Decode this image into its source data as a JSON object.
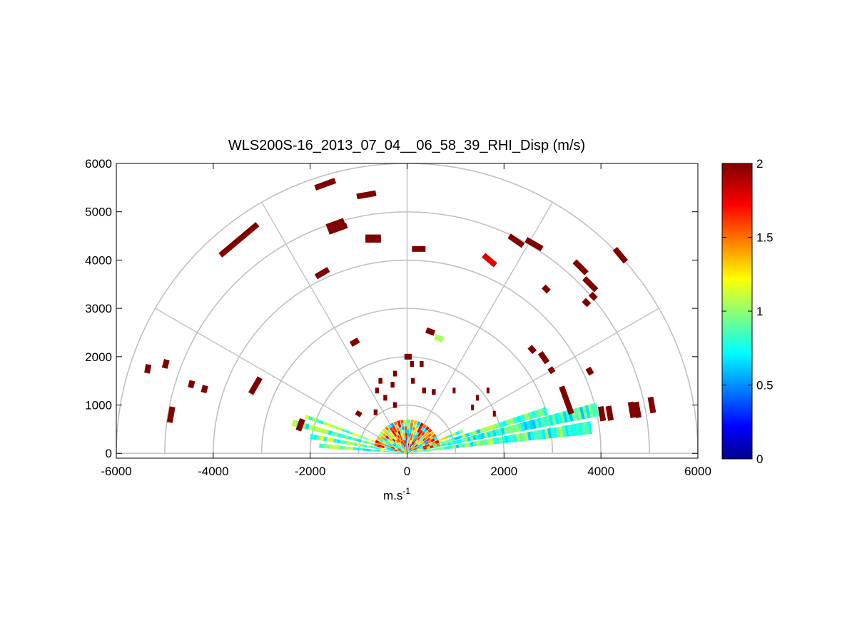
{
  "chart_data": {
    "type": "heatmap",
    "subtype": "polar-rhi-scan",
    "title": "WLS200S-16_2013_07_04__06_58_39_RHI_Disp (m/s)",
    "xlabel": {
      "base": "m.s",
      "sup": "-1"
    },
    "ylabel": "",
    "xlim": [
      -6000,
      6000
    ],
    "ylim": [
      -100,
      6000
    ],
    "xticks": [
      -6000,
      -4000,
      -2000,
      0,
      2000,
      4000,
      6000
    ],
    "yticks": [
      0,
      1000,
      2000,
      3000,
      4000,
      5000,
      6000
    ],
    "xtick_labels": [
      "-6000",
      "-4000",
      "-2000",
      "0",
      "2000",
      "4000",
      "6000"
    ],
    "ytick_labels": [
      "0",
      "1000",
      "2000",
      "3000",
      "4000",
      "5000",
      "6000"
    ],
    "polar_grid": {
      "range_rings": [
        1000,
        2000,
        3000,
        4000,
        5000,
        6000
      ],
      "spoke_angles_deg": [
        0,
        30,
        60,
        90,
        120,
        150,
        180
      ]
    },
    "colorbar": {
      "colormap": "jet",
      "min": 0,
      "max": 2,
      "ticks": [
        0,
        0.5,
        1,
        1.5,
        2
      ],
      "tick_labels": [
        "0",
        "0.5",
        "1",
        "1.5",
        "2"
      ]
    },
    "grid": false,
    "colors": {
      "grid": "#c0c0c0",
      "axes": "#000000",
      "background": "#ffffff"
    },
    "segments": [
      {
        "x": -5350,
        "y": 1750,
        "angle": 80,
        "len": 180,
        "value": 2
      },
      {
        "x": -4980,
        "y": 1850,
        "angle": 75,
        "len": 180,
        "value": 2
      },
      {
        "x": -4870,
        "y": 800,
        "angle": 80,
        "len": 330,
        "value": 2
      },
      {
        "x": -4450,
        "y": 1430,
        "angle": 75,
        "len": 150,
        "value": 2
      },
      {
        "x": -4180,
        "y": 1330,
        "angle": 75,
        "len": 150,
        "value": 2
      },
      {
        "x": -3130,
        "y": 1400,
        "angle": 60,
        "len": 380,
        "value": 2
      },
      {
        "x": -3470,
        "y": 4420,
        "angle": 40,
        "len": 1000,
        "value": 2
      },
      {
        "x": -1690,
        "y": 5570,
        "angle": 20,
        "len": 440,
        "value": 2
      },
      {
        "x": -840,
        "y": 5350,
        "angle": 10,
        "len": 400,
        "value": 2
      },
      {
        "x": -1480,
        "y": 4750,
        "angle": 20,
        "len": 380,
        "value": 2
      },
      {
        "x": -1430,
        "y": 4650,
        "angle": 20,
        "len": 400,
        "value": 2
      },
      {
        "x": -700,
        "y": 4420,
        "angle": 0,
        "len": 320,
        "value": 2
      },
      {
        "x": -700,
        "y": 4470,
        "angle": 0,
        "len": 320,
        "value": 2
      },
      {
        "x": -1750,
        "y": 3730,
        "angle": 30,
        "len": 300,
        "value": 2
      },
      {
        "x": 240,
        "y": 4230,
        "angle": 0,
        "len": 280,
        "value": 2
      },
      {
        "x": 1700,
        "y": 4000,
        "angle": -40,
        "len": 320,
        "value": 1.8
      },
      {
        "x": 2250,
        "y": 4400,
        "angle": -35,
        "len": 350,
        "value": 2
      },
      {
        "x": 2620,
        "y": 4330,
        "angle": -30,
        "len": 380,
        "value": 2
      },
      {
        "x": 3580,
        "y": 3850,
        "angle": -45,
        "len": 350,
        "value": 2
      },
      {
        "x": 3780,
        "y": 3500,
        "angle": -45,
        "len": 350,
        "value": 2
      },
      {
        "x": 3840,
        "y": 3250,
        "angle": -45,
        "len": 150,
        "value": 2
      },
      {
        "x": 3700,
        "y": 3120,
        "angle": -45,
        "len": 150,
        "value": 2
      },
      {
        "x": 4400,
        "y": 4100,
        "angle": -50,
        "len": 350,
        "value": 2
      },
      {
        "x": 2870,
        "y": 3400,
        "angle": -45,
        "len": 150,
        "value": 2
      },
      {
        "x": -1080,
        "y": 2300,
        "angle": 30,
        "len": 180,
        "value": 2
      },
      {
        "x": 480,
        "y": 2520,
        "angle": -20,
        "len": 180,
        "value": 2
      },
      {
        "x": 660,
        "y": 2380,
        "angle": -20,
        "len": 180,
        "value": 1.05
      },
      {
        "x": 2580,
        "y": 2150,
        "angle": -50,
        "len": 150,
        "value": 2
      },
      {
        "x": 2820,
        "y": 1980,
        "angle": -55,
        "len": 250,
        "value": 2
      },
      {
        "x": 2980,
        "y": 1720,
        "angle": -55,
        "len": 120,
        "value": 2
      },
      {
        "x": 3770,
        "y": 1700,
        "angle": -60,
        "len": 150,
        "value": 2
      },
      {
        "x": 3290,
        "y": 1100,
        "angle": -70,
        "len": 600,
        "value": 2
      },
      {
        "x": 4020,
        "y": 820,
        "angle": -80,
        "len": 300,
        "value": 2
      },
      {
        "x": 4180,
        "y": 830,
        "angle": -80,
        "len": 300,
        "value": 2
      },
      {
        "x": 4640,
        "y": 900,
        "angle": -80,
        "len": 330,
        "value": 2
      },
      {
        "x": 4750,
        "y": 900,
        "angle": -80,
        "len": 330,
        "value": 2
      },
      {
        "x": 5050,
        "y": 1000,
        "angle": -80,
        "len": 330,
        "value": 2
      },
      {
        "x": -2200,
        "y": 590,
        "angle": 70,
        "len": 250,
        "value": 2
      },
      {
        "x": 20,
        "y": 2000,
        "angle": 0,
        "len": 150,
        "value": 2
      },
      {
        "x": -250,
        "y": 1650,
        "angle": 0,
        "len": 80,
        "value": 2
      },
      {
        "x": 100,
        "y": 1850,
        "angle": 0,
        "len": 80,
        "value": 2
      },
      {
        "x": 300,
        "y": 1850,
        "angle": 0,
        "len": 80,
        "value": 2
      },
      {
        "x": -550,
        "y": 1500,
        "angle": 0,
        "len": 80,
        "value": 2
      },
      {
        "x": -300,
        "y": 1420,
        "angle": 0,
        "len": 80,
        "value": 2
      },
      {
        "x": 120,
        "y": 1500,
        "angle": 0,
        "len": 80,
        "value": 2
      },
      {
        "x": -620,
        "y": 1300,
        "angle": 0,
        "len": 80,
        "value": 2
      },
      {
        "x": -450,
        "y": 1150,
        "angle": 0,
        "len": 80,
        "value": 2
      },
      {
        "x": -250,
        "y": 1000,
        "angle": 0,
        "len": 80,
        "value": 2
      },
      {
        "x": 350,
        "y": 1300,
        "angle": 0,
        "len": 80,
        "value": 2
      },
      {
        "x": 550,
        "y": 1270,
        "angle": 0,
        "len": 80,
        "value": 2
      },
      {
        "x": -650,
        "y": 850,
        "angle": 0,
        "len": 80,
        "value": 2
      },
      {
        "x": 970,
        "y": 1300,
        "angle": 0,
        "len": 60,
        "value": 2
      },
      {
        "x": 1670,
        "y": 1300,
        "angle": 0,
        "len": 60,
        "value": 2
      },
      {
        "x": -1000,
        "y": 820,
        "angle": 60,
        "len": 100,
        "value": 2
      },
      {
        "x": 1450,
        "y": 1150,
        "angle": 0,
        "len": 60,
        "value": 2
      },
      {
        "x": 1350,
        "y": 950,
        "angle": 0,
        "len": 60,
        "value": 2
      },
      {
        "x": 1800,
        "y": 820,
        "angle": 0,
        "len": 60,
        "value": 2
      }
    ]
  }
}
